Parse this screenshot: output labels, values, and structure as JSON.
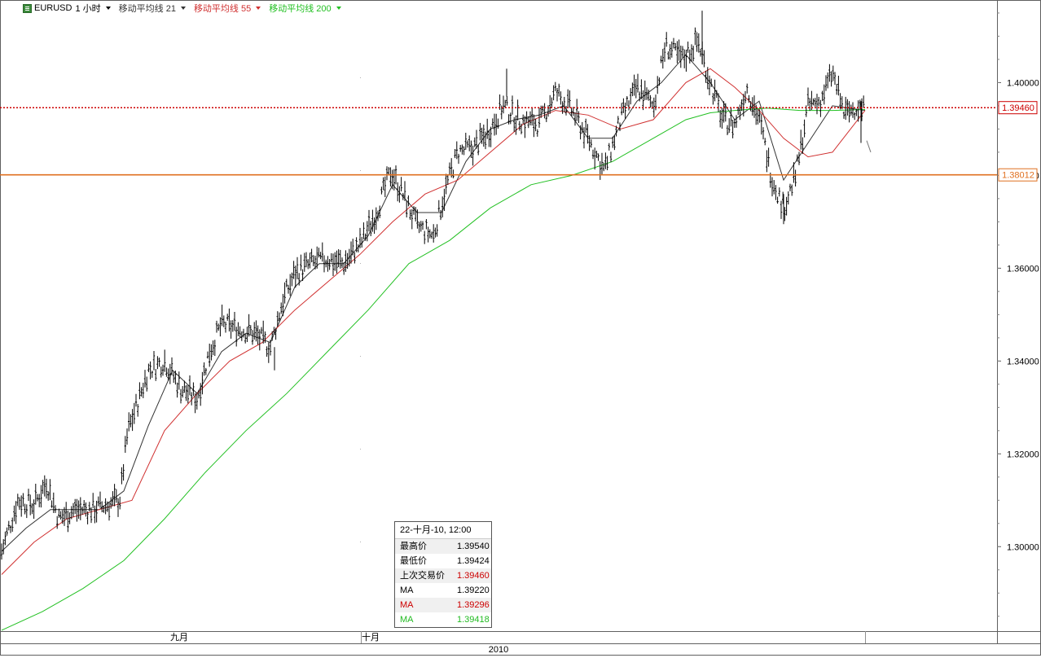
{
  "toolbar": {
    "symbol": "EURUSD",
    "timeframe": "1 小时",
    "ma1_label": "移动平均线 21",
    "ma2_label": "移动平均线 55",
    "ma3_label": "移动平均线 200",
    "ma1_color": "#333333",
    "ma2_color": "#d03030",
    "ma3_color": "#22c022"
  },
  "tooltip": {
    "datetime": "22-十月-10, 12:00",
    "rows": [
      {
        "label": "最高价",
        "value": "1.39540",
        "color": "#000000"
      },
      {
        "label": "最低价",
        "value": "1.39424",
        "color": "#000000"
      },
      {
        "label": "上次交易价",
        "value": "1.39460",
        "color": "#cc0000"
      },
      {
        "label": "MA",
        "value": "1.39220",
        "color": "#000000"
      },
      {
        "label": "MA",
        "value": "1.39296",
        "color": "#cc0000"
      },
      {
        "label": "MA",
        "value": "1.39418",
        "color": "#22bb22"
      }
    ]
  },
  "chart_data": {
    "type": "line",
    "title": "EURUSD 1 小时",
    "y_axis": {
      "ticks": [
        "1.30000",
        "1.32000",
        "1.34000",
        "1.36000",
        "1.38000",
        "1.40000"
      ],
      "tick_values": [
        1.3,
        1.32,
        1.34,
        1.36,
        1.38,
        1.4
      ],
      "range": [
        1.2818,
        1.4178
      ],
      "position": "right"
    },
    "x_axis": {
      "month_labels": [
        "九月",
        "十月"
      ],
      "year_label": "2010",
      "range": [
        0,
        1060
      ]
    },
    "grid": false,
    "price_lines": [
      {
        "name": "last",
        "value": 1.3946,
        "label": "1.39460",
        "color": "#cc0000",
        "style": "dotted"
      },
      {
        "name": "level",
        "value": 1.38012,
        "label": "1.38012",
        "color": "#e07020",
        "style": "solid"
      }
    ],
    "price_series": {
      "name": "EURUSD",
      "x": [
        0,
        20,
        40,
        55,
        70,
        90,
        110,
        130,
        145,
        155,
        165,
        180,
        200,
        220,
        240,
        255,
        270,
        290,
        310,
        330,
        345,
        360,
        380,
        400,
        420,
        440,
        460,
        478,
        495,
        510,
        530,
        545,
        560,
        580,
        600,
        615,
        635,
        660,
        680,
        700,
        720,
        740,
        760,
        780,
        800,
        815,
        835,
        855,
        870,
        885,
        900,
        915,
        930,
        945,
        960,
        975,
        990,
        1005,
        1020,
        1035,
        1050,
        1060
      ],
      "y": [
        1.299,
        1.31,
        1.309,
        1.314,
        1.306,
        1.308,
        1.308,
        1.309,
        1.31,
        1.325,
        1.33,
        1.338,
        1.34,
        1.334,
        1.332,
        1.342,
        1.348,
        1.347,
        1.346,
        1.343,
        1.353,
        1.359,
        1.361,
        1.362,
        1.361,
        1.365,
        1.372,
        1.381,
        1.375,
        1.369,
        1.367,
        1.377,
        1.385,
        1.386,
        1.39,
        1.395,
        1.392,
        1.391,
        1.398,
        1.394,
        1.388,
        1.381,
        1.392,
        1.399,
        1.395,
        1.408,
        1.405,
        1.409,
        1.4,
        1.392,
        1.391,
        1.399,
        1.392,
        1.38,
        1.373,
        1.38,
        1.395,
        1.396,
        1.402,
        1.393,
        1.395,
        1.394
      ]
    },
    "series": [
      {
        "name": "移动平均线 21",
        "color": "#333333",
        "x": [
          0,
          30,
          60,
          90,
          120,
          150,
          180,
          210,
          240,
          270,
          300,
          330,
          360,
          390,
          420,
          450,
          480,
          510,
          540,
          570,
          600,
          630,
          660,
          690,
          720,
          750,
          780,
          810,
          840,
          870,
          900,
          930,
          960,
          990,
          1020,
          1060
        ],
        "y": [
          1.299,
          1.304,
          1.308,
          1.308,
          1.308,
          1.312,
          1.326,
          1.338,
          1.333,
          1.342,
          1.346,
          1.344,
          1.356,
          1.361,
          1.361,
          1.367,
          1.378,
          1.372,
          1.372,
          1.383,
          1.39,
          1.392,
          1.393,
          1.395,
          1.388,
          1.388,
          1.396,
          1.4,
          1.406,
          1.4,
          1.392,
          1.396,
          1.379,
          1.387,
          1.395,
          1.394
        ]
      },
      {
        "name": "移动平均线 55",
        "color": "#d03030",
        "x": [
          0,
          40,
          80,
          120,
          160,
          200,
          240,
          280,
          320,
          360,
          400,
          440,
          480,
          520,
          560,
          600,
          640,
          680,
          720,
          760,
          800,
          840,
          870,
          900,
          930,
          960,
          990,
          1020,
          1060
        ],
        "y": [
          1.294,
          1.301,
          1.306,
          1.308,
          1.31,
          1.325,
          1.333,
          1.34,
          1.344,
          1.351,
          1.357,
          1.363,
          1.37,
          1.376,
          1.379,
          1.385,
          1.391,
          1.394,
          1.393,
          1.39,
          1.392,
          1.4,
          1.403,
          1.399,
          1.394,
          1.388,
          1.384,
          1.385,
          1.394
        ]
      },
      {
        "name": "移动平均线 200",
        "color": "#22c022",
        "x": [
          0,
          50,
          100,
          150,
          200,
          250,
          300,
          350,
          400,
          450,
          500,
          550,
          600,
          650,
          700,
          750,
          800,
          840,
          870,
          900,
          940,
          980,
          1020,
          1060
        ],
        "y": [
          1.282,
          1.286,
          1.291,
          1.297,
          1.306,
          1.316,
          1.325,
          1.333,
          1.342,
          1.351,
          1.361,
          1.366,
          1.373,
          1.378,
          1.38,
          1.383,
          1.388,
          1.392,
          1.3935,
          1.394,
          1.3945,
          1.394,
          1.394,
          1.3942
        ]
      }
    ]
  }
}
